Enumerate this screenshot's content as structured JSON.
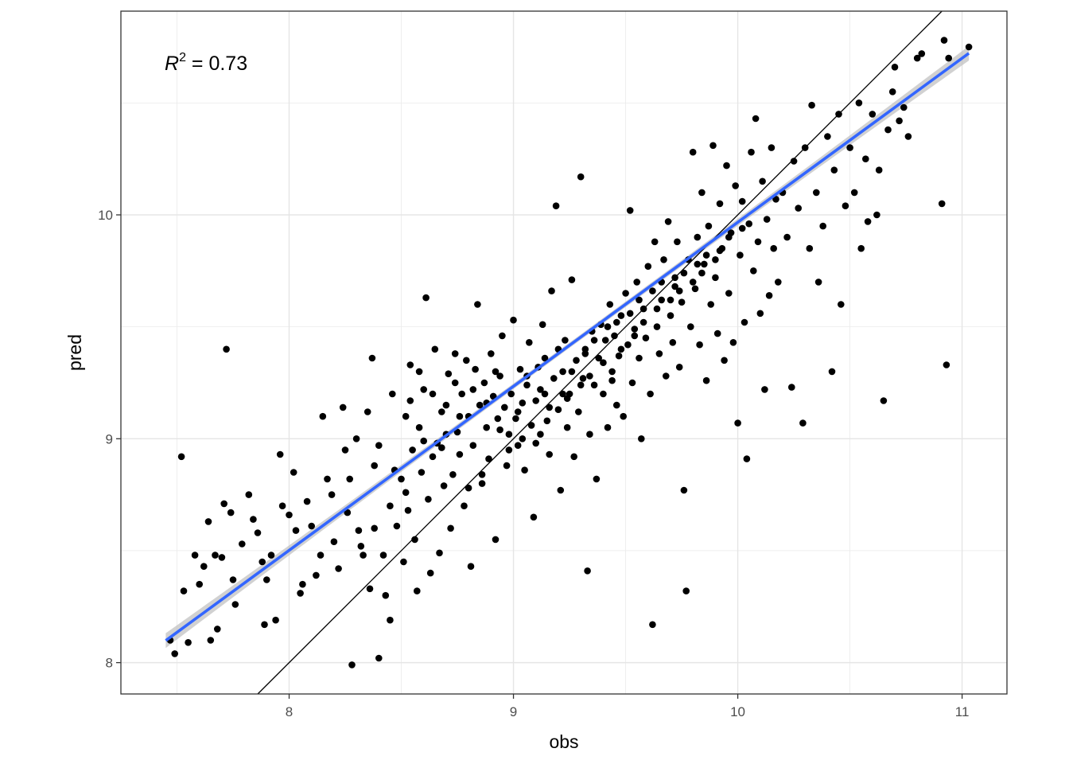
{
  "chart_data": {
    "type": "scatter",
    "xlabel": "obs",
    "ylabel": "pred",
    "xlim": [
      7.25,
      11.2
    ],
    "ylim": [
      7.86,
      10.91
    ],
    "x_ticks": [
      8,
      9,
      10,
      11
    ],
    "x_tick_labels": [
      "8",
      "9",
      "10",
      "11"
    ],
    "y_ticks": [
      8,
      9,
      10
    ],
    "y_tick_labels": [
      "8",
      "9",
      "10"
    ],
    "grid": true,
    "annotation": {
      "prefix": "R",
      "superscript": "2",
      "suffix": " = 0.73"
    },
    "reference_line": {
      "label": "",
      "intercept": 0,
      "slope": 1,
      "color": "#000000"
    },
    "fit_line": {
      "method": "lm",
      "color": "#3366FF",
      "band_color": "#bdbdbd",
      "x_range": [
        7.45,
        11.03
      ],
      "intercept": 2.64,
      "slope": 0.7327
    },
    "point_color": "#000000",
    "points": [
      [
        7.47,
        8.1
      ],
      [
        7.49,
        8.04
      ],
      [
        7.52,
        8.92
      ],
      [
        7.53,
        8.32
      ],
      [
        7.55,
        8.09
      ],
      [
        7.58,
        8.48
      ],
      [
        7.6,
        8.35
      ],
      [
        7.62,
        8.43
      ],
      [
        7.64,
        8.63
      ],
      [
        7.65,
        8.1
      ],
      [
        7.67,
        8.48
      ],
      [
        7.68,
        8.15
      ],
      [
        7.7,
        8.47
      ],
      [
        7.71,
        8.71
      ],
      [
        7.72,
        9.4
      ],
      [
        7.74,
        8.67
      ],
      [
        7.75,
        8.37
      ],
      [
        7.76,
        8.26
      ],
      [
        7.79,
        8.53
      ],
      [
        7.82,
        8.75
      ],
      [
        7.84,
        8.64
      ],
      [
        7.86,
        8.58
      ],
      [
        7.88,
        8.45
      ],
      [
        7.89,
        8.17
      ],
      [
        7.9,
        8.37
      ],
      [
        7.92,
        8.48
      ],
      [
        7.94,
        8.19
      ],
      [
        7.96,
        8.93
      ],
      [
        7.97,
        8.7
      ],
      [
        8.0,
        8.66
      ],
      [
        8.02,
        8.85
      ],
      [
        8.03,
        8.59
      ],
      [
        8.05,
        8.31
      ],
      [
        8.06,
        8.35
      ],
      [
        8.08,
        8.72
      ],
      [
        8.1,
        8.61
      ],
      [
        8.12,
        8.39
      ],
      [
        8.14,
        8.48
      ],
      [
        8.15,
        9.1
      ],
      [
        8.17,
        8.82
      ],
      [
        8.19,
        8.75
      ],
      [
        8.2,
        8.54
      ],
      [
        8.22,
        8.42
      ],
      [
        8.24,
        9.14
      ],
      [
        8.26,
        8.67
      ],
      [
        8.27,
        8.82
      ],
      [
        8.28,
        7.99
      ],
      [
        8.3,
        9.0
      ],
      [
        8.31,
        8.59
      ],
      [
        8.33,
        8.48
      ],
      [
        8.35,
        9.12
      ],
      [
        8.36,
        8.33
      ],
      [
        8.37,
        9.36
      ],
      [
        8.38,
        8.6
      ],
      [
        8.4,
        8.02
      ],
      [
        8.4,
        8.97
      ],
      [
        8.42,
        8.48
      ],
      [
        8.43,
        8.3
      ],
      [
        8.45,
        8.19
      ],
      [
        8.47,
        8.86
      ],
      [
        8.48,
        8.61
      ],
      [
        8.5,
        8.82
      ],
      [
        8.51,
        8.45
      ],
      [
        8.52,
        9.1
      ],
      [
        8.53,
        8.68
      ],
      [
        8.54,
        9.33
      ],
      [
        8.55,
        8.95
      ],
      [
        8.56,
        8.55
      ],
      [
        8.57,
        8.32
      ],
      [
        8.58,
        9.05
      ],
      [
        8.59,
        8.85
      ],
      [
        8.6,
        9.22
      ],
      [
        8.61,
        9.63
      ],
      [
        8.62,
        8.73
      ],
      [
        8.63,
        8.4
      ],
      [
        8.64,
        9.2
      ],
      [
        8.65,
        9.4
      ],
      [
        8.66,
        8.98
      ],
      [
        8.67,
        8.49
      ],
      [
        8.68,
        9.12
      ],
      [
        8.69,
        8.79
      ],
      [
        8.7,
        9.15
      ],
      [
        8.71,
        9.29
      ],
      [
        8.72,
        8.6
      ],
      [
        8.73,
        8.84
      ],
      [
        8.74,
        9.38
      ],
      [
        8.75,
        9.03
      ],
      [
        8.76,
        8.93
      ],
      [
        8.77,
        9.2
      ],
      [
        8.78,
        8.7
      ],
      [
        8.79,
        9.35
      ],
      [
        8.8,
        9.1
      ],
      [
        8.81,
        8.43
      ],
      [
        8.82,
        8.97
      ],
      [
        8.83,
        9.31
      ],
      [
        8.84,
        9.6
      ],
      [
        8.85,
        9.15
      ],
      [
        8.86,
        8.8
      ],
      [
        8.87,
        9.25
      ],
      [
        8.88,
        9.05
      ],
      [
        8.89,
        8.91
      ],
      [
        8.9,
        9.38
      ],
      [
        8.91,
        9.19
      ],
      [
        8.92,
        8.55
      ],
      [
        8.93,
        9.09
      ],
      [
        8.94,
        9.28
      ],
      [
        8.95,
        9.46
      ],
      [
        8.96,
        9.14
      ],
      [
        8.97,
        8.88
      ],
      [
        8.98,
        9.02
      ],
      [
        8.99,
        9.2
      ],
      [
        9.0,
        9.53
      ],
      [
        9.01,
        9.09
      ],
      [
        9.02,
        8.97
      ],
      [
        9.03,
        9.31
      ],
      [
        9.04,
        9.16
      ],
      [
        9.05,
        8.86
      ],
      [
        9.06,
        9.24
      ],
      [
        9.07,
        9.43
      ],
      [
        9.08,
        9.06
      ],
      [
        9.09,
        8.65
      ],
      [
        9.1,
        9.17
      ],
      [
        9.11,
        9.32
      ],
      [
        9.12,
        9.02
      ],
      [
        9.13,
        9.51
      ],
      [
        9.14,
        9.2
      ],
      [
        9.15,
        9.08
      ],
      [
        9.16,
        8.93
      ],
      [
        9.17,
        9.66
      ],
      [
        9.18,
        9.27
      ],
      [
        9.19,
        10.04
      ],
      [
        9.2,
        9.13
      ],
      [
        9.21,
        8.77
      ],
      [
        9.22,
        9.3
      ],
      [
        9.23,
        9.44
      ],
      [
        9.24,
        9.05
      ],
      [
        9.25,
        9.2
      ],
      [
        9.26,
        9.71
      ],
      [
        9.27,
        8.92
      ],
      [
        9.28,
        9.35
      ],
      [
        9.29,
        9.12
      ],
      [
        9.3,
        10.17
      ],
      [
        9.31,
        9.27
      ],
      [
        9.32,
        9.4
      ],
      [
        9.33,
        8.41
      ],
      [
        9.34,
        9.02
      ],
      [
        9.35,
        9.48
      ],
      [
        9.36,
        9.24
      ],
      [
        9.37,
        8.82
      ],
      [
        9.38,
        9.36
      ],
      [
        9.39,
        9.51
      ],
      [
        9.4,
        9.2
      ],
      [
        9.41,
        9.44
      ],
      [
        9.42,
        9.05
      ],
      [
        9.43,
        9.6
      ],
      [
        9.44,
        9.3
      ],
      [
        9.45,
        9.46
      ],
      [
        9.46,
        9.15
      ],
      [
        9.47,
        9.37
      ],
      [
        9.48,
        9.55
      ],
      [
        9.49,
        9.1
      ],
      [
        9.5,
        9.65
      ],
      [
        9.51,
        9.42
      ],
      [
        9.52,
        10.02
      ],
      [
        9.53,
        9.25
      ],
      [
        9.54,
        9.49
      ],
      [
        9.55,
        9.7
      ],
      [
        9.56,
        9.36
      ],
      [
        9.57,
        9.0
      ],
      [
        9.58,
        9.58
      ],
      [
        9.59,
        9.45
      ],
      [
        9.6,
        9.77
      ],
      [
        9.61,
        9.2
      ],
      [
        9.62,
        8.17
      ],
      [
        9.63,
        9.88
      ],
      [
        9.64,
        9.5
      ],
      [
        9.65,
        9.38
      ],
      [
        9.66,
        9.62
      ],
      [
        9.67,
        9.8
      ],
      [
        9.68,
        9.28
      ],
      [
        9.69,
        9.97
      ],
      [
        9.7,
        9.55
      ],
      [
        9.71,
        9.43
      ],
      [
        9.72,
        9.72
      ],
      [
        9.73,
        9.88
      ],
      [
        9.74,
        9.32
      ],
      [
        9.75,
        9.61
      ],
      [
        9.76,
        8.77
      ],
      [
        9.77,
        8.32
      ],
      [
        9.78,
        9.8
      ],
      [
        9.79,
        9.5
      ],
      [
        9.8,
        10.28
      ],
      [
        9.81,
        9.67
      ],
      [
        9.82,
        9.9
      ],
      [
        9.83,
        9.42
      ],
      [
        9.84,
        10.1
      ],
      [
        9.85,
        9.78
      ],
      [
        9.86,
        9.26
      ],
      [
        9.87,
        9.95
      ],
      [
        9.88,
        9.6
      ],
      [
        9.89,
        10.31
      ],
      [
        9.9,
        9.72
      ],
      [
        9.91,
        9.47
      ],
      [
        9.92,
        10.05
      ],
      [
        9.93,
        9.85
      ],
      [
        9.94,
        9.35
      ],
      [
        9.95,
        10.22
      ],
      [
        9.96,
        9.65
      ],
      [
        9.97,
        9.92
      ],
      [
        9.98,
        9.43
      ],
      [
        9.99,
        10.13
      ],
      [
        10.0,
        9.07
      ],
      [
        10.01,
        9.82
      ],
      [
        10.02,
        10.06
      ],
      [
        10.03,
        9.52
      ],
      [
        10.04,
        8.91
      ],
      [
        10.05,
        9.96
      ],
      [
        10.06,
        10.28
      ],
      [
        10.07,
        9.75
      ],
      [
        10.08,
        10.43
      ],
      [
        10.09,
        9.88
      ],
      [
        10.1,
        9.56
      ],
      [
        10.11,
        10.15
      ],
      [
        10.12,
        9.22
      ],
      [
        10.13,
        9.98
      ],
      [
        10.14,
        9.64
      ],
      [
        10.15,
        10.3
      ],
      [
        10.16,
        9.85
      ],
      [
        10.17,
        10.07
      ],
      [
        10.18,
        9.7
      ],
      [
        10.2,
        10.1
      ],
      [
        10.22,
        9.9
      ],
      [
        10.24,
        9.23
      ],
      [
        10.25,
        10.24
      ],
      [
        10.27,
        10.03
      ],
      [
        10.29,
        9.07
      ],
      [
        10.3,
        10.3
      ],
      [
        10.32,
        9.85
      ],
      [
        10.33,
        10.49
      ],
      [
        10.35,
        10.1
      ],
      [
        10.36,
        9.7
      ],
      [
        10.38,
        9.95
      ],
      [
        10.4,
        10.35
      ],
      [
        10.42,
        9.3
      ],
      [
        10.43,
        10.2
      ],
      [
        10.45,
        10.45
      ],
      [
        10.46,
        9.6
      ],
      [
        10.48,
        10.04
      ],
      [
        10.5,
        10.3
      ],
      [
        10.52,
        10.1
      ],
      [
        10.54,
        10.5
      ],
      [
        10.55,
        9.85
      ],
      [
        10.57,
        10.25
      ],
      [
        10.58,
        9.97
      ],
      [
        10.6,
        10.45
      ],
      [
        10.62,
        10.0
      ],
      [
        10.63,
        10.2
      ],
      [
        10.65,
        9.17
      ],
      [
        10.67,
        10.38
      ],
      [
        10.69,
        10.55
      ],
      [
        10.7,
        10.66
      ],
      [
        10.72,
        10.42
      ],
      [
        10.74,
        10.48
      ],
      [
        10.76,
        10.35
      ],
      [
        10.8,
        10.7
      ],
      [
        10.82,
        10.72
      ],
      [
        10.91,
        10.05
      ],
      [
        10.92,
        10.78
      ],
      [
        10.93,
        9.33
      ],
      [
        10.94,
        10.7
      ],
      [
        11.03,
        10.75
      ],
      [
        8.45,
        8.7
      ],
      [
        8.52,
        8.76
      ],
      [
        8.58,
        9.3
      ],
      [
        8.64,
        8.92
      ],
      [
        8.7,
        9.02
      ],
      [
        8.76,
        9.1
      ],
      [
        8.82,
        9.22
      ],
      [
        8.88,
        9.16
      ],
      [
        8.94,
        9.04
      ],
      [
        9.02,
        9.12
      ],
      [
        9.06,
        9.28
      ],
      [
        9.12,
        9.22
      ],
      [
        9.16,
        9.14
      ],
      [
        9.22,
        9.2
      ],
      [
        9.26,
        9.3
      ],
      [
        9.32,
        9.38
      ],
      [
        9.36,
        9.44
      ],
      [
        9.42,
        9.5
      ],
      [
        9.46,
        9.52
      ],
      [
        9.52,
        9.56
      ],
      [
        9.56,
        9.62
      ],
      [
        9.62,
        9.66
      ],
      [
        9.66,
        9.7
      ],
      [
        9.72,
        9.68
      ],
      [
        9.76,
        9.74
      ],
      [
        9.82,
        9.78
      ],
      [
        9.86,
        9.82
      ],
      [
        9.92,
        9.84
      ],
      [
        9.96,
        9.9
      ],
      [
        10.02,
        9.94
      ],
      [
        8.25,
        8.95
      ],
      [
        8.32,
        8.52
      ],
      [
        8.38,
        8.88
      ],
      [
        8.46,
        9.2
      ],
      [
        8.54,
        9.17
      ],
      [
        8.6,
        8.99
      ],
      [
        8.68,
        8.96
      ],
      [
        8.74,
        9.25
      ],
      [
        8.8,
        8.78
      ],
      [
        8.86,
        8.84
      ],
      [
        8.92,
        9.3
      ],
      [
        8.98,
        8.95
      ],
      [
        9.04,
        9.0
      ],
      [
        9.1,
        8.98
      ],
      [
        9.14,
        9.36
      ],
      [
        9.2,
        9.4
      ],
      [
        9.24,
        9.18
      ],
      [
        9.3,
        9.24
      ],
      [
        9.34,
        9.28
      ],
      [
        9.4,
        9.34
      ],
      [
        9.44,
        9.26
      ],
      [
        9.48,
        9.4
      ],
      [
        9.54,
        9.46
      ],
      [
        9.58,
        9.52
      ],
      [
        9.64,
        9.58
      ],
      [
        9.7,
        9.62
      ],
      [
        9.74,
        9.66
      ],
      [
        9.8,
        9.7
      ],
      [
        9.84,
        9.74
      ],
      [
        9.9,
        9.8
      ]
    ]
  }
}
